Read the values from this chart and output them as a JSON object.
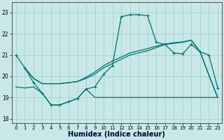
{
  "xlabel": "Humidex (Indice chaleur)",
  "bg_color": "#c8e8e8",
  "grid_color": "#a8d0d0",
  "line_color": "#007070",
  "xlim": [
    -0.5,
    23.5
  ],
  "ylim": [
    17.8,
    23.5
  ],
  "yticks": [
    18,
    19,
    20,
    21,
    22,
    23
  ],
  "xticks": [
    0,
    1,
    2,
    3,
    4,
    5,
    6,
    7,
    8,
    9,
    10,
    11,
    12,
    13,
    14,
    15,
    16,
    17,
    18,
    19,
    20,
    21,
    22,
    23
  ],
  "line1_x": [
    0,
    1,
    2,
    3,
    4,
    5,
    6,
    7,
    8,
    9,
    10,
    11,
    12,
    13,
    14,
    15,
    16,
    17,
    18,
    19,
    20,
    21,
    22,
    23
  ],
  "line1_y": [
    21.0,
    20.4,
    19.7,
    19.2,
    18.65,
    18.65,
    18.8,
    18.95,
    19.4,
    19.5,
    20.1,
    20.5,
    22.8,
    22.9,
    22.9,
    22.85,
    21.6,
    21.5,
    21.1,
    21.05,
    21.5,
    21.15,
    21.0,
    19.45
  ],
  "line2_x": [
    1,
    2,
    3,
    4,
    5,
    6,
    7,
    8,
    9,
    10,
    11,
    12,
    13,
    14,
    15,
    16,
    17,
    18,
    19,
    20,
    21,
    22,
    23
  ],
  "line2_y": [
    20.4,
    19.9,
    19.65,
    19.65,
    19.65,
    19.7,
    19.75,
    19.9,
    20.1,
    20.4,
    20.6,
    20.8,
    21.0,
    21.1,
    21.2,
    21.35,
    21.5,
    21.55,
    21.6,
    21.7,
    21.15,
    20.05,
    19.0
  ],
  "line3_x": [
    1,
    2,
    3,
    4,
    5,
    6,
    7,
    8,
    9,
    10,
    11,
    12,
    13,
    14,
    15,
    16,
    17,
    18,
    19,
    20,
    21,
    22,
    23
  ],
  "line3_y": [
    20.4,
    19.9,
    19.65,
    19.65,
    19.65,
    19.7,
    19.75,
    19.95,
    20.2,
    20.5,
    20.72,
    20.9,
    21.1,
    21.2,
    21.3,
    21.42,
    21.52,
    21.58,
    21.62,
    21.7,
    21.15,
    20.05,
    19.0
  ],
  "line4_x": [
    0,
    1,
    2,
    3,
    4,
    5,
    6,
    7,
    8,
    9,
    10,
    11,
    12,
    13,
    14,
    15,
    16,
    17,
    18,
    19,
    20,
    21,
    22,
    23
  ],
  "line4_y": [
    19.5,
    19.45,
    19.5,
    19.2,
    18.65,
    18.65,
    18.8,
    18.95,
    19.4,
    19.0,
    19.0,
    19.0,
    19.0,
    19.0,
    19.0,
    19.0,
    19.0,
    19.0,
    19.0,
    19.0,
    19.0,
    19.0,
    19.0,
    19.0
  ]
}
